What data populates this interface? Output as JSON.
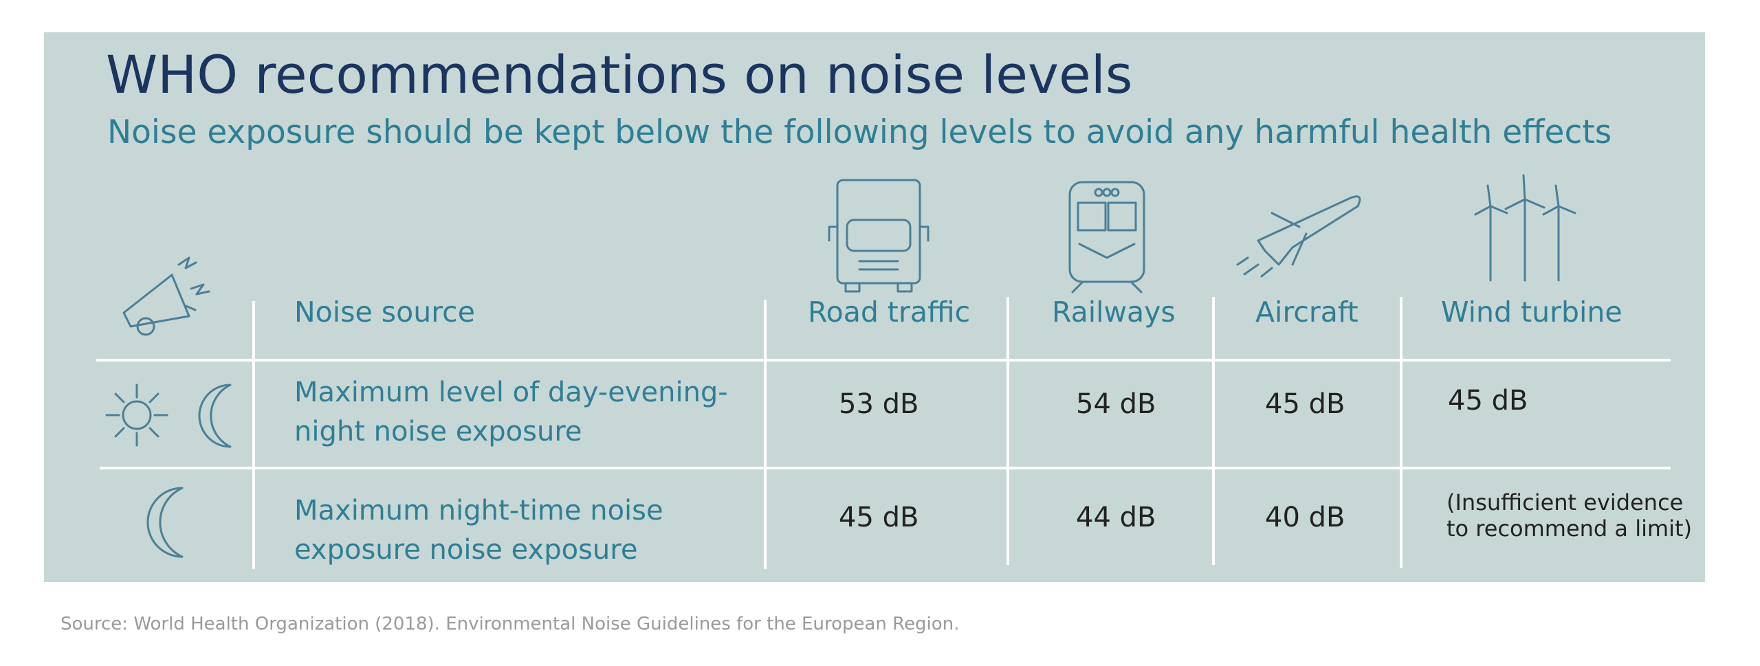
{
  "header": {
    "title": "WHO recommendations on noise levels",
    "subtitle": "Noise exposure should be kept below the following levels to avoid any harmful health effects"
  },
  "table": {
    "header": [
      "Noise source",
      "Road traffic",
      "Railways",
      "Aircraft",
      "Wind turbine"
    ],
    "rows": [
      [
        "Maximum level of day-evening-night noise exposure",
        "53 dB",
        "54 dB",
        "45 dB",
        "45 dB"
      ],
      [
        "Maximum night-time noise exposure noise exposure",
        "45 dB",
        "44 dB",
        "40 dB",
        "(Insufficient evidence to recommend a limit)"
      ]
    ]
  },
  "source": "Source: World Health Organization (2018). Environmental Noise Guidelines for the European Region."
}
